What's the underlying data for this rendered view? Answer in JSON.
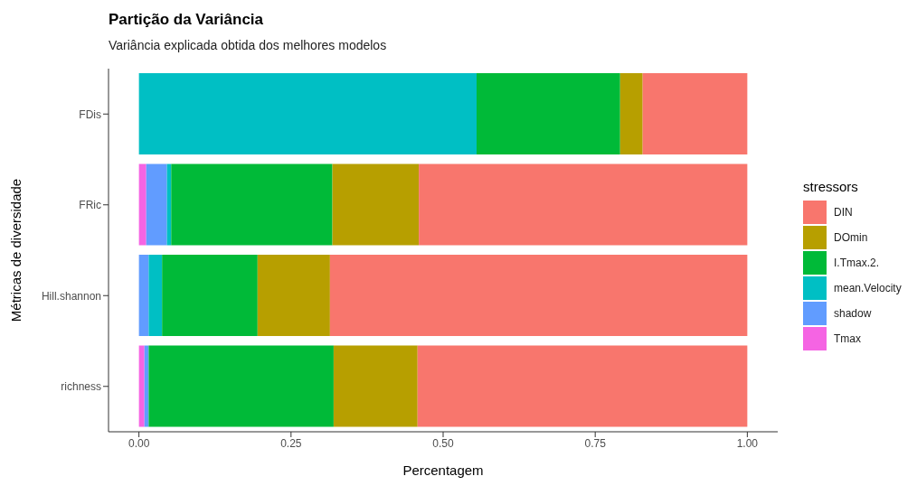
{
  "chart_data": {
    "type": "bar",
    "orientation": "horizontal",
    "stacked": true,
    "title": "Partição da Variância",
    "subtitle": "Variância explicada obtida dos melhores modelos",
    "xlabel": "Percentagem",
    "ylabel": "Métricas de diversidade",
    "legend_title": "stressors",
    "legend": "right",
    "grid": false,
    "categories": [
      "FDis",
      "FRic",
      "Hill.shannon",
      "richness"
    ],
    "xlim": [
      -0.05,
      1.05
    ],
    "xticks": [
      {
        "value": 0,
        "label": "0.00"
      },
      {
        "value": 0.25,
        "label": "0.25"
      },
      {
        "value": 0.5,
        "label": "0.50"
      },
      {
        "value": 0.75,
        "label": "0.75"
      },
      {
        "value": 1,
        "label": "1.00"
      }
    ],
    "series": [
      {
        "name": "Tmax",
        "color": "#f564e3",
        "values": [
          0,
          0.012,
          0,
          0.009
        ]
      },
      {
        "name": "shadow",
        "color": "#619cff",
        "values": [
          0,
          0.034,
          0.016,
          0.007
        ]
      },
      {
        "name": "mean.Velocity",
        "color": "#00bfc4",
        "values": [
          0.555,
          0.007,
          0.022,
          0
        ]
      },
      {
        "name": "I.Tmax.2.",
        "color": "#00ba38",
        "values": [
          0.236,
          0.265,
          0.157,
          0.304
        ]
      },
      {
        "name": "DOmin",
        "color": "#b79f00",
        "values": [
          0.037,
          0.142,
          0.119,
          0.138
        ]
      },
      {
        "name": "DIN",
        "color": "#f8766d",
        "values": [
          0.172,
          0.54,
          0.686,
          0.542
        ]
      }
    ]
  }
}
